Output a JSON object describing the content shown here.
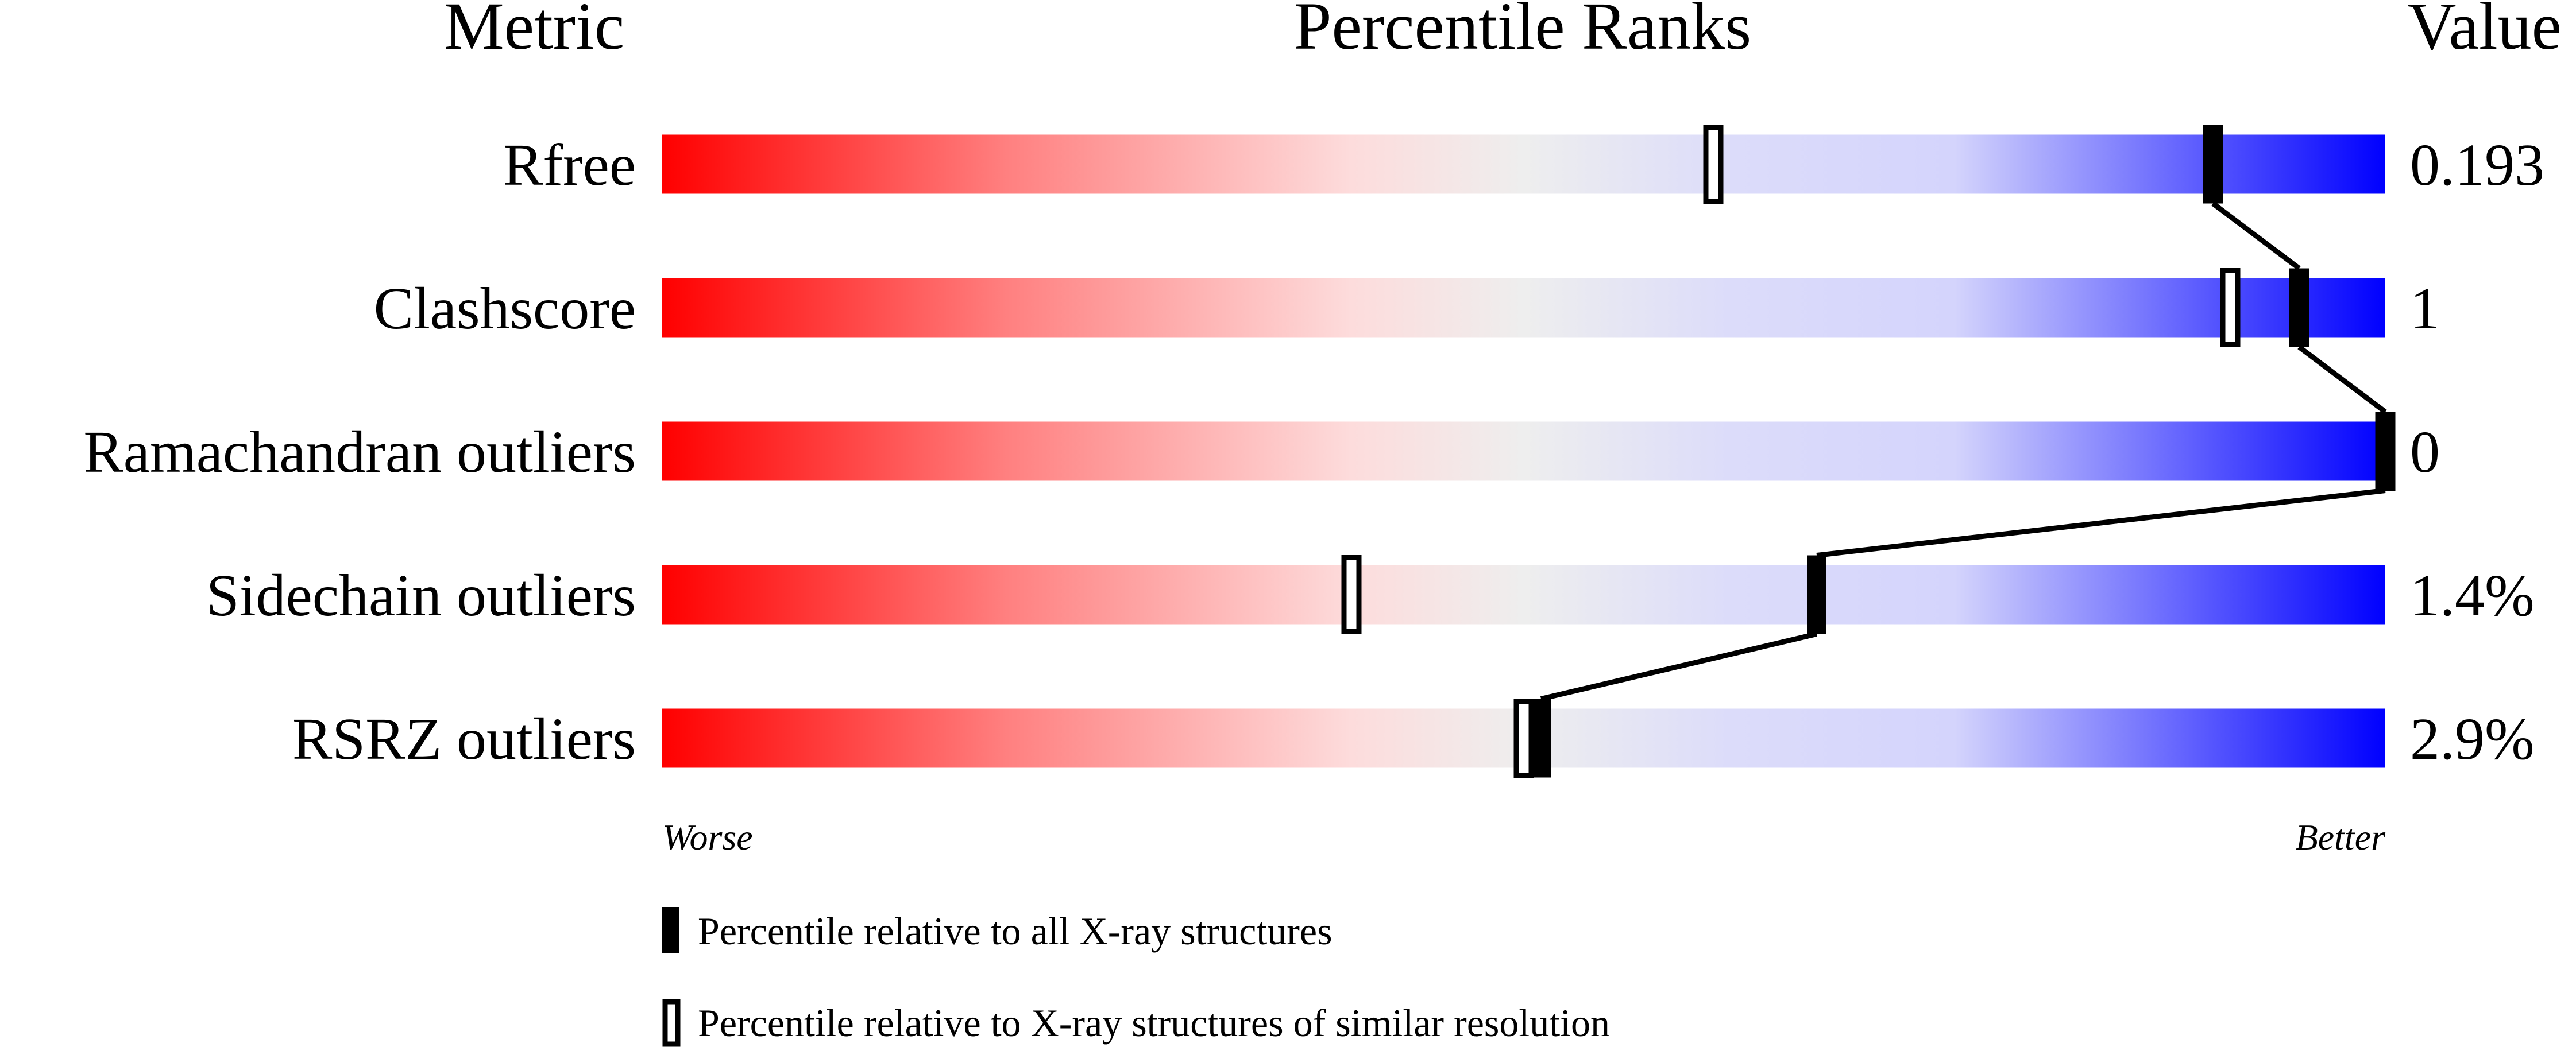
{
  "chart_data": {
    "type": "percentile-slider",
    "headers": {
      "metric": "Metric",
      "ranks": "Percentile Ranks",
      "value": "Value"
    },
    "xlim": [
      0,
      100
    ],
    "axis_labels": {
      "left": "Worse",
      "right": "Better"
    },
    "colors": {
      "worse": "#ff0000",
      "neutral": "#eeeeee",
      "better": "#0000ff"
    },
    "rows": [
      {
        "metric": "Rfree",
        "value": "0.193",
        "percentile_all": 90,
        "percentile_similar": 61
      },
      {
        "metric": "Clashscore",
        "value": "1",
        "percentile_all": 95,
        "percentile_similar": 91
      },
      {
        "metric": "Ramachandran outliers",
        "value": "0",
        "percentile_all": 100,
        "percentile_similar": 100
      },
      {
        "metric": "Sidechain outliers",
        "value": "1.4%",
        "percentile_all": 67,
        "percentile_similar": 40
      },
      {
        "metric": "RSRZ outliers",
        "value": "2.9%",
        "percentile_all": 51,
        "percentile_similar": 50
      }
    ],
    "legend": [
      {
        "marker": "filled",
        "label": "Percentile relative to all X-ray structures"
      },
      {
        "marker": "open",
        "label": "Percentile relative to X-ray structures of similar resolution"
      }
    ]
  }
}
